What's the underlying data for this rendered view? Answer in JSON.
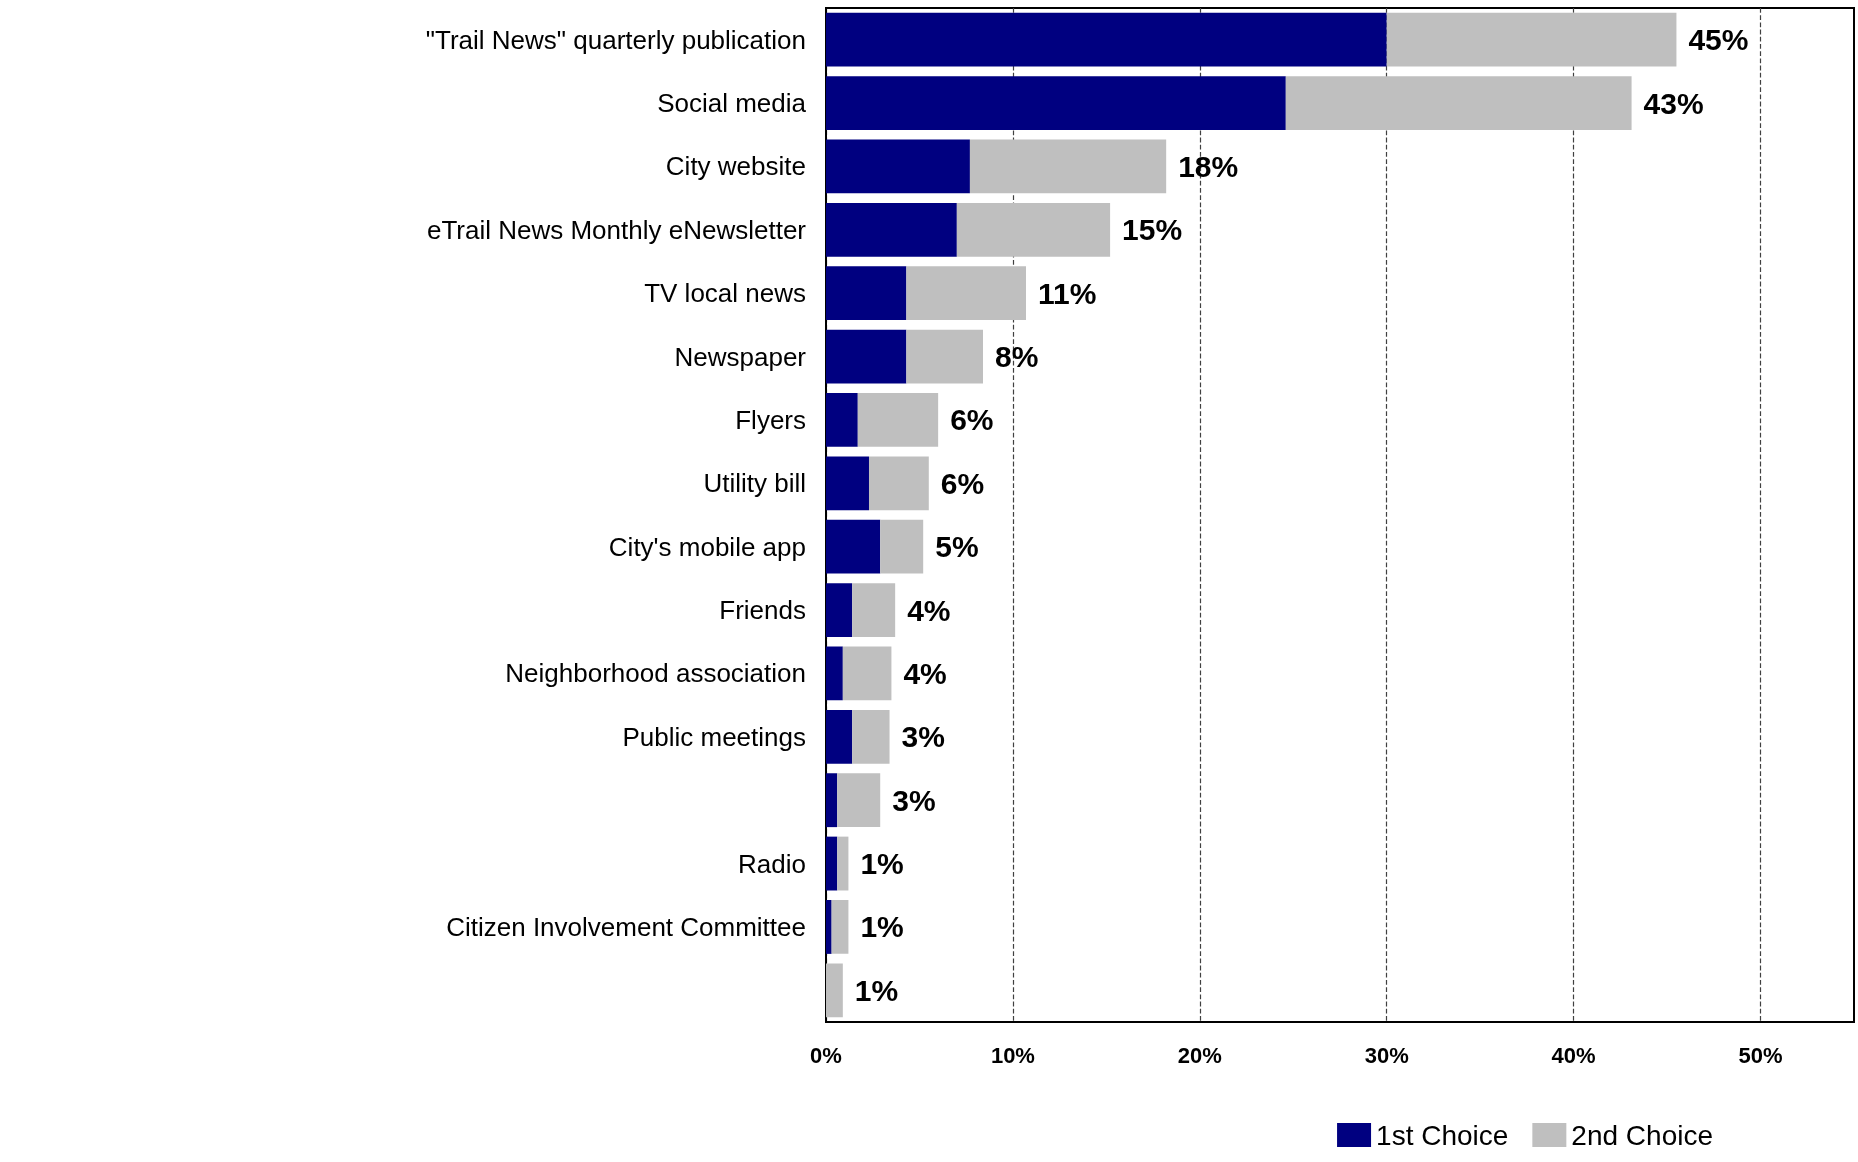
{
  "chart_data": {
    "type": "bar",
    "orientation": "horizontal",
    "stacked": true,
    "categories": [
      "\"Trail News\" quarterly publication",
      "Social media",
      "City website",
      "eTrail News Monthly eNewsletter",
      "TV local news",
      "Newspaper",
      "Flyers",
      "Utility bill",
      "City's mobile app",
      "Friends",
      "Neighborhood association",
      "Public meetings",
      null,
      "Radio",
      "Citizen Involvement Committee",
      null
    ],
    "series": [
      {
        "name": "1st Choice",
        "color": "#000080",
        "values": [
          30,
          24.6,
          7.7,
          7.0,
          4.3,
          4.3,
          1.7,
          2.3,
          2.9,
          1.4,
          0.9,
          1.4,
          0.6,
          0.6,
          0.3,
          0
        ]
      },
      {
        "name": "2nd Choice",
        "color": "#bfbfbf",
        "values": [
          15.5,
          18.5,
          10.5,
          8.2,
          6.4,
          4.1,
          4.3,
          3.2,
          2.3,
          2.3,
          2.6,
          2.0,
          2.3,
          0.6,
          0.9,
          0.9
        ]
      }
    ],
    "totals": [
      "45%",
      "43%",
      "18%",
      "15%",
      "11%",
      "8%",
      "6%",
      "6%",
      "5%",
      "4%",
      "4%",
      "3%",
      "3%",
      "1%",
      "1%",
      "1%"
    ],
    "xlim": [
      0,
      55
    ],
    "xticks": [
      {
        "value": 0,
        "label": "0%"
      },
      {
        "value": 10,
        "label": "10%"
      },
      {
        "value": 20,
        "label": "20%"
      },
      {
        "value": 30,
        "label": "30%"
      },
      {
        "value": 40,
        "label": "40%"
      },
      {
        "value": 50,
        "label": "50%"
      }
    ],
    "grid": "x",
    "legend": "bottom right"
  }
}
